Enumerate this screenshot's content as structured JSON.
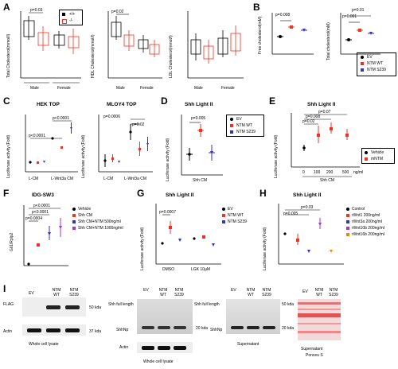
{
  "panels": {
    "A": {
      "label": "A",
      "c1": {
        "ylabel": "Total Cholesterol(mmol/l)",
        "p": "p=0.03",
        "groups": [
          "Male",
          "Female"
        ],
        "ticks": [
          "0",
          "1",
          "2",
          "3",
          "4",
          "5",
          "6"
        ],
        "legend": [
          "+/+",
          "-/-"
        ]
      },
      "c2": {
        "ylabel": "HDL Cholesterol(mmol/l)",
        "p": "p=0.02",
        "groups": [
          "Male",
          "Female"
        ],
        "ticks": [
          "0",
          "1",
          "2",
          "3",
          "4"
        ]
      },
      "c3": {
        "ylabel": "LDL Cholesterol(mmol/l)",
        "groups": [
          "Male",
          "Female"
        ],
        "ticks": [
          "0.0",
          "0.5",
          "1.0",
          "1.5",
          "2.0"
        ]
      }
    },
    "B": {
      "label": "B",
      "c1": {
        "ylabel": "Free cholesterol(mM)",
        "p": "p=0.008",
        "ticks": [
          "0.0",
          "0.5",
          "1.0",
          "1.5",
          "2.0"
        ]
      },
      "c2": {
        "ylabel": "Total cholesterol(mM)",
        "p1": "p=0.01",
        "p2": "p=0.001",
        "ticks": [
          "0",
          "2",
          "4",
          "6",
          "8"
        ],
        "legend": [
          "EV",
          "NTM WT",
          "NTM S239"
        ]
      }
    },
    "C": {
      "label": "C",
      "c1": {
        "title": "HEK TOP",
        "ylabel": "Luciferase activity (Fold)",
        "p1": "p<0.0001",
        "p2": "p<0.0001",
        "groups": [
          "L-CM",
          "L-Wnt3a CM"
        ],
        "ticks": [
          "0",
          "2",
          "4",
          "6"
        ]
      },
      "c2": {
        "title": "MLOY4 TOP",
        "ylabel": "Luciferase activity (Fold)",
        "p1": "p=0.0006",
        "p2": "p=0.02",
        "groups": [
          "L-CM",
          "L-Wnt3a CM"
        ],
        "ticks": [
          "0",
          "2",
          "4",
          "6"
        ]
      }
    },
    "D": {
      "label": "D",
      "title": "Shh Light II",
      "ylabel": "Luciferase activity (Fold)",
      "p": "p=0.005",
      "xlabel": "Shh CM",
      "ticks": [
        "0.0",
        "0.5",
        "1.0",
        "1.5",
        "2.0"
      ],
      "legend": [
        "EV",
        "NTM WT",
        "NTM S239"
      ]
    },
    "E": {
      "label": "E",
      "title": "Shh Light II",
      "ylabel": "Luciferase activity (Fold)",
      "p1": "p=0.07",
      "p2": "p=0.008",
      "p3": "p=0.02",
      "xticks": [
        "0",
        "100",
        "200",
        "500"
      ],
      "xunit": "ng/ml",
      "xlabel": "Shh CM",
      "ticks": [
        "0.0",
        "0.5",
        "1.0",
        "1.5",
        "2.0",
        "2.5"
      ],
      "legend": [
        "Vehicle",
        "mNTM"
      ]
    },
    "F": {
      "label": "F",
      "title": "IDG-SW3",
      "ylabel": "Gli1/Rplp2",
      "p1": "p<0.0001",
      "p2": "p<0.0001",
      "p3": "p=0.0004",
      "ticks": [
        "0",
        "10",
        "20",
        "30",
        "40"
      ],
      "legend": [
        "Vehicle",
        "Shh CM",
        "Shh CM+NTM 500ng/ml",
        "Shh CM+NTM 1000ng/ml"
      ]
    },
    "G": {
      "label": "G",
      "title": "Shh Light II",
      "ylabel": "Luciferase activity (Fold)",
      "p": "p=0.0007",
      "groups": [
        "DMSO",
        "LGK 10µM"
      ],
      "ticks": [
        "0.0",
        "0.5",
        "1.0",
        "1.5",
        "2.0"
      ],
      "legend": [
        "EV",
        "NTM WT",
        "NTM S239"
      ]
    },
    "H": {
      "label": "H",
      "title": "Shh Light II",
      "ylabel": "Luciferase activity (Fold)",
      "p1": "p=0.03",
      "p2": "p=0.005",
      "ticks": [
        "0.0",
        "0.5",
        "1.0",
        "1.5",
        "2.0"
      ],
      "legend": [
        "Control",
        "rWnt1 200ng/ml",
        "rWnt3a 200ng/ml",
        "rWnt10b 200ng/ml",
        "rWnt16b 200ng/ml"
      ]
    },
    "I": {
      "label": "I",
      "b1": {
        "lanes": [
          "EV",
          "NTM WT",
          "NTM S239"
        ],
        "rows": [
          "FLAG",
          "Actin"
        ],
        "markers": [
          "50 kda",
          "37 kda"
        ],
        "caption": "Whole cell lysate"
      },
      "b2": {
        "lanes": [
          "EV",
          "NTM WT",
          "NTM S239"
        ],
        "rows": [
          "Shh full length",
          "ShhNp",
          "Actin"
        ],
        "markers": [
          "Shh full length",
          "20 kda"
        ],
        "caption": "Whole cell lysate"
      },
      "b3": {
        "lanes": [
          "EV",
          "NTM WT",
          "NTM S239"
        ],
        "rows": [
          "ShhNp"
        ],
        "markers": [
          "50 kda",
          "20 kda"
        ],
        "caption": "Supernatant"
      },
      "b4": {
        "lanes": [
          "EV",
          "NTM WT",
          "NTM S239"
        ],
        "caption1": "Supernatant",
        "caption2": "Ponceu S"
      }
    }
  }
}
